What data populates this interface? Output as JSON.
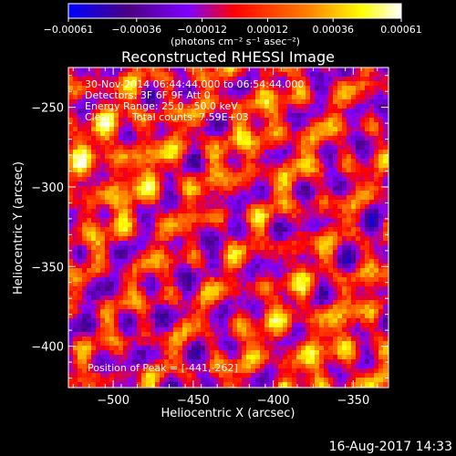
{
  "chart_data": {
    "type": "heatmap",
    "title": "Reconstructed RHESSI Image",
    "xlabel": "Heliocentric X (arcsec)",
    "ylabel": "Heliocentric Y (arcsec)",
    "xlim": [
      -528,
      -328
    ],
    "ylim": [
      -426,
      -225
    ],
    "x_ticks": [
      -500,
      -450,
      -400,
      -350
    ],
    "x_tick_labels": [
      "−500",
      "−450",
      "−400",
      "−350"
    ],
    "y_ticks": [
      -250,
      -300,
      -350,
      -400
    ],
    "y_tick_labels": [
      "−250",
      "−300",
      "−350",
      "−400"
    ],
    "colorbar": {
      "min": -0.00061,
      "max": 0.00061,
      "ticks": [
        -0.00061,
        -0.00036,
        -0.00012,
        0.00012,
        0.00036,
        0.00061
      ],
      "tick_labels": [
        "−0.00061",
        "−0.00036",
        "−0.00012",
        "0.00012",
        "0.00036",
        "0.00061"
      ],
      "units": "(photons cm⁻² s⁻¹ asec⁻²)",
      "colormap": [
        "#0000ff",
        "#4b0082",
        "#8000ff",
        "#ff0000",
        "#ff8000",
        "#ffff00",
        "#ffffff"
      ]
    },
    "annotations": {
      "time_range": "30-Nov-2014 06:44:44.000 to 06:54:44.000",
      "detectors": "Detectors: 3F 6F 9F Att 0",
      "energy_range": "Energy Range: 25.0 - 50.0 keV",
      "method": "Clean",
      "total_counts": "Total counts: 7.59E+03",
      "peak": "Position of Peak = [-441,-262]"
    },
    "peak_position": [
      -441,
      -262
    ],
    "grid": false
  },
  "footer": {
    "date": "16-Aug-2017 14:33"
  },
  "colors": {
    "background": "#000000",
    "text": "#ffffff"
  }
}
